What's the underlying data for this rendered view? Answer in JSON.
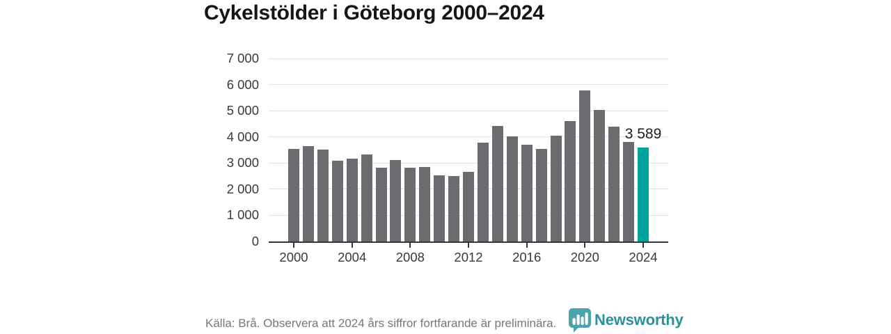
{
  "title": "Cykelstölder i Göteborg 2000–2024",
  "chart_data": {
    "type": "bar",
    "x": [
      2000,
      2001,
      2002,
      2003,
      2004,
      2005,
      2006,
      2007,
      2008,
      2009,
      2010,
      2011,
      2012,
      2013,
      2014,
      2015,
      2016,
      2017,
      2018,
      2019,
      2020,
      2021,
      2022,
      2023,
      2024
    ],
    "values": [
      3550,
      3660,
      3510,
      3100,
      3170,
      3340,
      2820,
      3120,
      2810,
      2850,
      2530,
      2510,
      2660,
      3780,
      4410,
      4020,
      3710,
      3530,
      4040,
      4600,
      5780,
      5040,
      4380,
      3810,
      3589
    ],
    "title": "Cykelstölder i Göteborg 2000–2024",
    "xlabel": "",
    "ylabel": "",
    "ylim": [
      0,
      7000
    ],
    "ytick_interval": 1000,
    "ytick_labels": [
      "0",
      "1 000",
      "2 000",
      "3 000",
      "4 000",
      "5 000",
      "6 000",
      "7 000"
    ],
    "xtick_labels": [
      "2000",
      "2004",
      "2008",
      "2012",
      "2016",
      "2020",
      "2024"
    ],
    "grid": true,
    "legend": "none",
    "bar_color": "#6d6a70",
    "highlight_year": 2024,
    "highlight_color": "#00a49b",
    "highlight_value_label": "3 589"
  },
  "footer": {
    "source_note": "Källa: Brå. Observera att 2024 års siffror fortfarande är preliminära.",
    "logo_text": "Newsworthy",
    "logo_text_color": "#2b919b",
    "logo_icon_color": "#3e9da5"
  }
}
